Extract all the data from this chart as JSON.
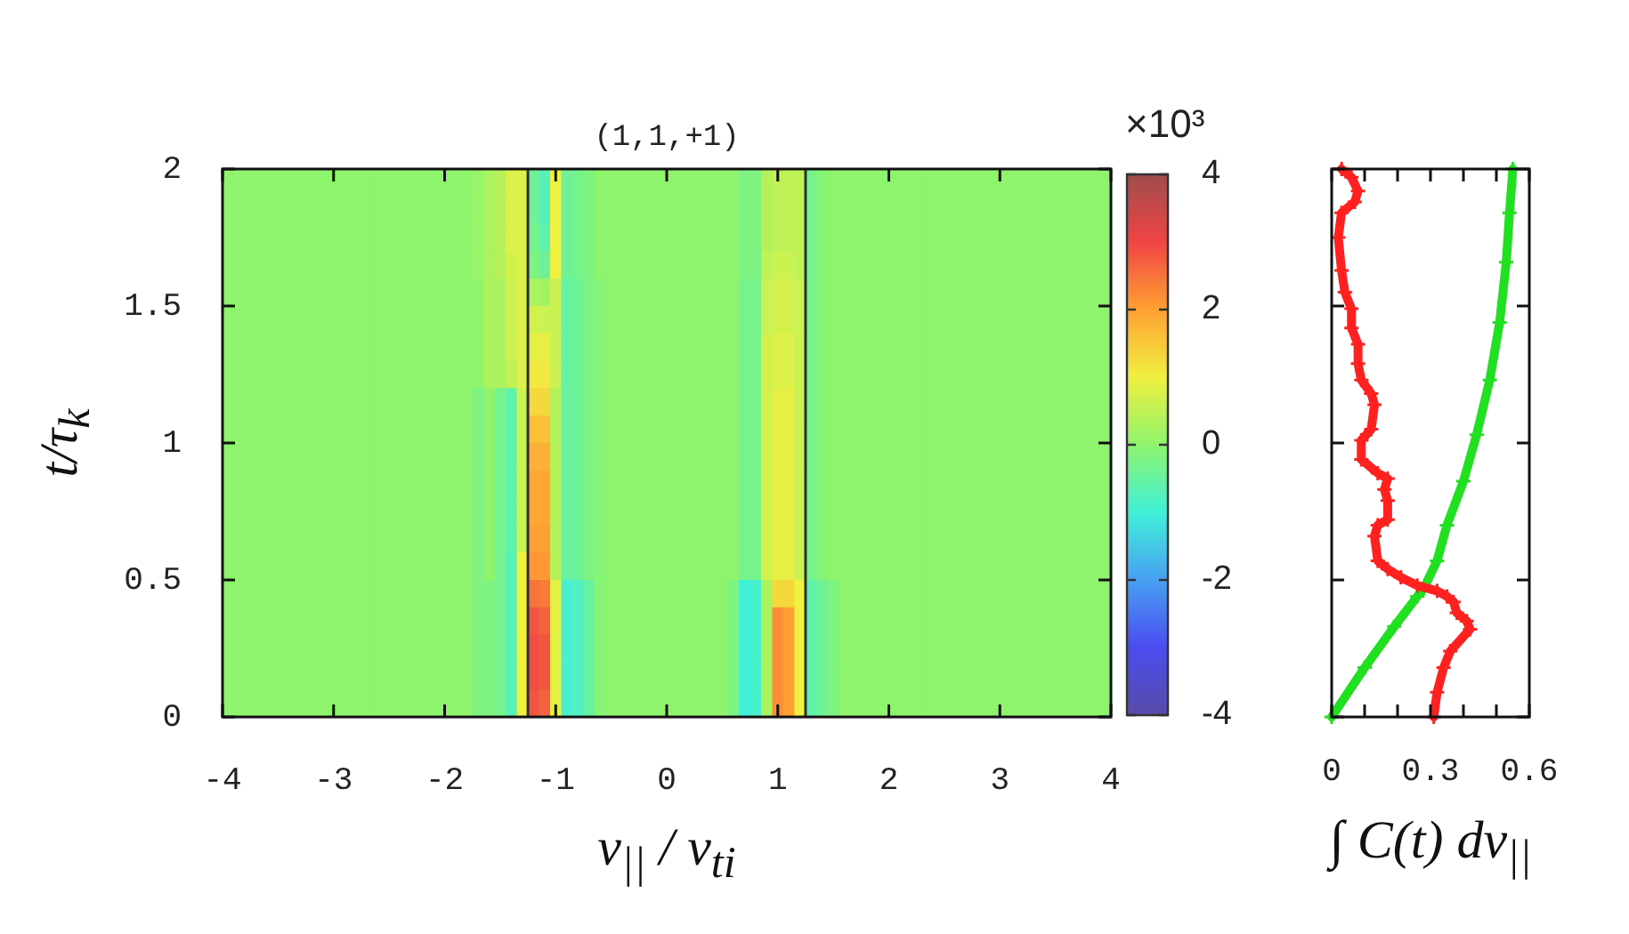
{
  "chart_data": [
    {
      "type": "heatmap",
      "title": "(1,1,+1)",
      "xlabel": "v$_{||}$ / v$_{ti}$",
      "ylabel": "t/τ$_{k}$",
      "clabel": "×10³",
      "x": [
        -4,
        -3.9,
        -3.8,
        -3.7,
        -3.6,
        -3.5,
        -3.4,
        -3.3,
        -3.2,
        -3.1,
        -3,
        -2.9,
        -2.8,
        -2.7,
        -2.6,
        -2.5,
        -2.4,
        -2.3,
        -2.2,
        -2.1,
        -2,
        -1.9,
        -1.8,
        -1.7,
        -1.6,
        -1.5,
        -1.4,
        -1.3,
        -1.2,
        -1.1,
        -1,
        -0.9,
        -0.8,
        -0.7,
        -0.6,
        -0.5,
        -0.4,
        -0.3,
        -0.2,
        -0.1,
        0,
        0.1,
        0.2,
        0.3,
        0.4,
        0.5,
        0.6,
        0.7,
        0.8,
        0.9,
        1,
        1.1,
        1.2,
        1.3,
        1.4,
        1.5,
        1.6,
        1.7,
        1.8,
        1.9,
        2,
        2.1,
        2.2,
        2.3,
        2.4,
        2.5,
        2.6,
        2.7,
        2.8,
        2.9,
        3,
        3.1,
        3.2,
        3.3,
        3.4,
        3.5,
        3.6,
        3.7,
        3.8,
        3.9,
        4
      ],
      "xlim": [
        -4,
        4
      ],
      "xticks": [
        -4,
        -3,
        -2,
        -1,
        0,
        1,
        2,
        3,
        4
      ],
      "y": [
        1.95,
        1.85,
        1.75,
        1.65,
        1.55,
        1.45,
        1.35,
        1.25,
        1.15,
        1.05,
        0.95,
        0.85,
        0.75,
        0.65,
        0.55,
        0.45,
        0.35,
        0.25,
        0.15,
        0.05
      ],
      "ylim": [
        0,
        2
      ],
      "yticks": [
        0,
        0.5,
        1,
        1.5,
        2
      ],
      "clim": [
        -4,
        4
      ],
      "cticks": [
        -4,
        -2,
        0,
        2,
        4
      ],
      "ref_lines": [
        {
          "axis": "x",
          "value": -1.25,
          "color": "#303030"
        },
        {
          "axis": "x",
          "value": 1.25,
          "color": "#303030"
        }
      ],
      "cells": [
        [
          0,
          0,
          0,
          0,
          0,
          0,
          0,
          0,
          0,
          0,
          0,
          0,
          0,
          0,
          0,
          0,
          0,
          0,
          0,
          0,
          0,
          0,
          0,
          0.1,
          0.3,
          0.4,
          0.8,
          0.8,
          -0.4,
          -0.7,
          1,
          -0.4,
          -0.3,
          -0.2,
          0,
          0,
          0,
          0,
          0,
          0,
          0,
          0,
          0,
          0,
          0,
          0,
          0,
          -0.2,
          -0.2,
          0.4,
          0.5,
          0.5,
          0.5,
          -0.3,
          -0.1,
          0,
          0,
          0,
          0,
          0,
          0,
          0,
          0,
          0,
          0,
          0,
          0,
          0,
          0,
          0,
          0,
          0,
          0,
          0,
          0,
          0,
          0,
          0,
          0,
          0,
          0
        ],
        [
          0,
          0,
          0,
          0,
          0,
          0,
          0,
          0,
          0,
          0,
          0,
          0,
          0,
          0,
          0,
          0,
          0,
          0,
          0,
          0,
          0,
          0,
          0,
          0.1,
          0.3,
          0.4,
          0.8,
          0.8,
          -0.4,
          -0.7,
          1,
          -0.4,
          -0.3,
          -0.2,
          0,
          0,
          0,
          0,
          0,
          0,
          0,
          0,
          0,
          0,
          0,
          0,
          0,
          -0.2,
          -0.2,
          0.4,
          0.5,
          0.5,
          0.5,
          -0.3,
          -0.1,
          0,
          0,
          0,
          0,
          0,
          0,
          0,
          0,
          0,
          0,
          0,
          0,
          0,
          0,
          0,
          0,
          0,
          0,
          0,
          0,
          0,
          0,
          0,
          0,
          0,
          0
        ],
        [
          0,
          0,
          0,
          0,
          0,
          0,
          0,
          0,
          0,
          0,
          0,
          0,
          0,
          0,
          0,
          0,
          0,
          0,
          0,
          0,
          0,
          0,
          0,
          0.1,
          0.3,
          0.4,
          0.8,
          0.8,
          -0.3,
          -0.6,
          1,
          -0.4,
          -0.3,
          -0.2,
          0,
          0,
          0,
          0,
          0,
          0,
          0,
          0,
          0,
          0,
          0,
          0,
          0,
          -0.2,
          -0.2,
          0.4,
          0.5,
          0.5,
          0.5,
          -0.3,
          -0.1,
          0,
          0,
          0,
          0,
          0,
          0,
          0,
          0,
          0,
          0,
          0,
          0,
          0,
          0,
          0,
          0,
          0,
          0,
          0,
          0,
          0,
          0,
          0,
          0,
          0,
          0
        ],
        [
          0,
          0,
          0,
          0,
          0,
          0,
          0,
          0,
          0,
          0,
          0,
          0,
          0,
          0,
          0,
          0,
          0,
          0,
          0,
          0,
          0,
          0,
          0,
          0.1,
          0.3,
          0.4,
          0.7,
          0.8,
          -0.2,
          -0.4,
          1,
          -0.4,
          -0.3,
          -0.2,
          0,
          0,
          0,
          0,
          0,
          0,
          0,
          0,
          0,
          0,
          0,
          0,
          0,
          -0.2,
          -0.2,
          0.5,
          0.6,
          0.6,
          0.5,
          -0.3,
          -0.1,
          0,
          0,
          0,
          0,
          0,
          0,
          0,
          0,
          0,
          0,
          0,
          0,
          0,
          0,
          0,
          0,
          0,
          0,
          0,
          0,
          0,
          0,
          0,
          0,
          0,
          0
        ],
        [
          0,
          0,
          0,
          0,
          0,
          0,
          0,
          0,
          0,
          0,
          0,
          0,
          0,
          0,
          0,
          0,
          0,
          0,
          0,
          0,
          0,
          0,
          0,
          0,
          0.3,
          0.3,
          0.6,
          0.8,
          0.3,
          0.2,
          0.6,
          -0.5,
          -0.4,
          -0.2,
          -0.1,
          0,
          0,
          0,
          0,
          0,
          0,
          0,
          0,
          0,
          0,
          0,
          0,
          -0.3,
          -0.3,
          0.6,
          0.7,
          0.7,
          0.6,
          -0.3,
          -0.1,
          0,
          0,
          0,
          0,
          0,
          0,
          0,
          0,
          0,
          0,
          0,
          0,
          0,
          0,
          0,
          0,
          0,
          0,
          0,
          0,
          0,
          0,
          0,
          0,
          0,
          0
        ],
        [
          0,
          0,
          0,
          0,
          0,
          0,
          0,
          0,
          0,
          0,
          0,
          0,
          0,
          0,
          0,
          0,
          0,
          0,
          0,
          0,
          0,
          0,
          0,
          0,
          0.3,
          0.3,
          0.6,
          0.8,
          0.7,
          0.6,
          0.6,
          -0.5,
          -0.4,
          -0.2,
          -0.1,
          0,
          0,
          0,
          0,
          0,
          0,
          0,
          0,
          0,
          0,
          0,
          0,
          -0.3,
          -0.3,
          0.6,
          0.7,
          0.7,
          0.6,
          -0.3,
          -0.1,
          0,
          0,
          0,
          0,
          0,
          0,
          0,
          0,
          0,
          0,
          0,
          0,
          0,
          0,
          0,
          0,
          0,
          0,
          0,
          0,
          0,
          0,
          0,
          0,
          0,
          0
        ],
        [
          0,
          0,
          0,
          0,
          0,
          0,
          0,
          0,
          0,
          0,
          0,
          0,
          0,
          0,
          0,
          0,
          0,
          0,
          0,
          0,
          0,
          0,
          0,
          0,
          0.3,
          0.3,
          0.6,
          0.8,
          0.9,
          0.9,
          0.6,
          -0.5,
          -0.4,
          -0.2,
          -0.1,
          0,
          0,
          0,
          0,
          0,
          0,
          0,
          0,
          0,
          0,
          0,
          0,
          -0.3,
          -0.3,
          0.7,
          0.8,
          0.8,
          0.6,
          -0.3,
          -0.1,
          0,
          0,
          0,
          0,
          0,
          0,
          0,
          0,
          0,
          0,
          0,
          0,
          0,
          0,
          0,
          0,
          0,
          0,
          0,
          0,
          0,
          0,
          0,
          0,
          0,
          0
        ],
        [
          0,
          0,
          0,
          0,
          0,
          0,
          0,
          0,
          0,
          0,
          0,
          0,
          0,
          0,
          0,
          0,
          0,
          0,
          0,
          0,
          0,
          0,
          0,
          0,
          0.3,
          0.3,
          0.5,
          0.8,
          1.1,
          1.1,
          0.6,
          -0.5,
          -0.4,
          -0.2,
          -0.1,
          0,
          0,
          0,
          0,
          0,
          0,
          0,
          0,
          0,
          0,
          0,
          0,
          -0.3,
          -0.3,
          0.7,
          0.8,
          0.8,
          0.6,
          -0.3,
          -0.1,
          0,
          0,
          0,
          0,
          0,
          0,
          0,
          0,
          0,
          0,
          0,
          0,
          0,
          0,
          0,
          0,
          0,
          0,
          0,
          0,
          0,
          0,
          0,
          0,
          0,
          0
        ],
        [
          0,
          0,
          0,
          0,
          0,
          0,
          0,
          0,
          0,
          0,
          0,
          0,
          0,
          0,
          0,
          0,
          0,
          0,
          0,
          0,
          0,
          0,
          0,
          -0.2,
          0,
          -0.3,
          -0.6,
          0.6,
          1.3,
          1.3,
          0.4,
          -0.5,
          -0.4,
          -0.2,
          -0.1,
          0,
          0,
          0,
          0,
          0,
          0,
          0,
          0,
          0,
          0,
          0,
          0,
          -0.3,
          -0.3,
          0.7,
          0.9,
          0.9,
          0.6,
          -0.3,
          -0.1,
          0,
          0,
          0,
          0,
          0,
          0,
          0,
          0,
          0,
          0,
          0,
          0,
          0,
          0,
          0,
          0,
          0,
          0,
          0,
          0,
          0,
          0,
          0,
          0,
          0,
          0
        ],
        [
          0,
          0,
          0,
          0,
          0,
          0,
          0,
          0,
          0,
          0,
          0,
          0,
          0,
          0,
          0,
          0,
          0,
          0,
          0,
          0,
          0,
          0,
          0,
          -0.2,
          0,
          -0.3,
          -0.6,
          0.6,
          1.6,
          1.6,
          0.4,
          -0.5,
          -0.4,
          -0.2,
          -0.1,
          0,
          0,
          0,
          0,
          0,
          0,
          0,
          0,
          0,
          0,
          0,
          0,
          -0.3,
          -0.3,
          0.7,
          0.9,
          0.9,
          0.6,
          -0.3,
          -0.1,
          0,
          0,
          0,
          0,
          0,
          0,
          0,
          0,
          0,
          0,
          0,
          0,
          0,
          0,
          0,
          0,
          0,
          0,
          0,
          0,
          0,
          0,
          0,
          0,
          0,
          0
        ],
        [
          0,
          0,
          0,
          0,
          0,
          0,
          0,
          0,
          0,
          0,
          0,
          0,
          0,
          0,
          0,
          0,
          0,
          0,
          0,
          0,
          0,
          0,
          0,
          -0.2,
          0,
          -0.3,
          -0.6,
          0.6,
          1.8,
          1.8,
          0.4,
          -0.5,
          -0.4,
          -0.2,
          -0.1,
          0,
          0,
          0,
          0,
          0,
          0,
          0,
          0,
          0,
          0,
          0,
          0,
          -0.3,
          -0.3,
          0.7,
          0.9,
          0.9,
          0.6,
          -0.3,
          -0.1,
          0,
          0,
          0,
          0,
          0,
          0,
          0,
          0,
          0,
          0,
          0,
          0,
          0,
          0,
          0,
          0,
          0,
          0,
          0,
          0,
          0,
          0,
          0,
          0,
          0,
          0
        ],
        [
          0,
          0,
          0,
          0,
          0,
          0,
          0,
          0,
          0,
          0,
          0,
          0,
          0,
          0,
          0,
          0,
          0,
          0,
          0,
          0,
          0,
          0,
          0,
          -0.2,
          0,
          -0.3,
          -0.6,
          0.6,
          1.9,
          1.9,
          0.4,
          -0.5,
          -0.4,
          -0.2,
          -0.1,
          0,
          0,
          0,
          0,
          0,
          0,
          0,
          0,
          0,
          0,
          0,
          0,
          -0.3,
          -0.3,
          0.7,
          0.9,
          0.9,
          0.6,
          -0.3,
          -0.1,
          0,
          0,
          0,
          0,
          0,
          0,
          0,
          0,
          0,
          0,
          0,
          0,
          0,
          0,
          0,
          0,
          0,
          0,
          0,
          0,
          0,
          0,
          0,
          0,
          0,
          0
        ],
        [
          0,
          0,
          0,
          0,
          0,
          0,
          0,
          0,
          0,
          0,
          0,
          0,
          0,
          0,
          0,
          0,
          0,
          0,
          0,
          0,
          0,
          0,
          0,
          -0.2,
          0,
          -0.3,
          -0.6,
          0.6,
          1.9,
          1.9,
          0.4,
          -0.5,
          -0.4,
          -0.2,
          -0.1,
          0,
          0,
          0,
          0,
          0,
          0,
          0,
          0,
          0,
          0,
          0,
          0,
          -0.3,
          -0.3,
          0.7,
          0.9,
          0.9,
          0.6,
          -0.3,
          -0.1,
          0,
          0,
          0,
          0,
          0,
          0,
          0,
          0,
          0,
          0,
          0,
          0,
          0,
          0,
          0,
          0,
          0,
          0,
          0,
          0,
          0,
          0,
          0,
          0,
          0,
          0
        ],
        [
          0,
          0,
          0,
          0,
          0,
          0,
          0,
          0,
          0,
          0,
          0,
          0,
          0,
          0,
          0,
          0,
          0,
          0,
          0,
          0,
          0,
          0,
          0,
          -0.2,
          0,
          -0.3,
          -0.6,
          0.6,
          2,
          2,
          0.4,
          -0.5,
          -0.4,
          -0.2,
          -0.1,
          0,
          0,
          0,
          0,
          0,
          0,
          0,
          0,
          0,
          0,
          0,
          0,
          -0.3,
          -0.3,
          0.7,
          0.9,
          0.9,
          0.6,
          -0.3,
          -0.1,
          0,
          0,
          0,
          0,
          0,
          0,
          0,
          0,
          0,
          0,
          0,
          0,
          0,
          0,
          0,
          0,
          0,
          0,
          0,
          0,
          0,
          0,
          0,
          0,
          0,
          0
        ],
        [
          0,
          0,
          0,
          0,
          0,
          0,
          0,
          0,
          0,
          0,
          0,
          0,
          0,
          0,
          0,
          0,
          0,
          0,
          0,
          0,
          0,
          0,
          0,
          -0.2,
          0,
          -0.3,
          -0.7,
          1,
          2.1,
          2.1,
          0.4,
          -0.5,
          -0.4,
          -0.2,
          -0.1,
          0,
          0,
          0,
          0,
          0,
          0,
          0,
          0,
          0,
          0,
          0,
          0,
          -0.3,
          -0.3,
          0.7,
          0.9,
          0.9,
          0.6,
          -0.3,
          -0.1,
          0,
          0,
          0,
          0,
          0,
          0,
          0,
          0,
          0,
          0,
          0,
          0,
          0,
          0,
          0,
          0,
          0,
          0,
          0,
          0,
          0,
          0,
          0,
          0,
          0,
          0
        ],
        [
          0,
          0,
          0,
          0,
          0,
          0,
          0,
          0,
          0,
          0,
          0,
          0,
          0,
          0,
          0,
          0,
          0,
          0,
          0,
          0,
          0,
          0,
          0,
          -0.2,
          -0.2,
          -0.3,
          -0.7,
          1,
          2.5,
          2.4,
          0.9,
          -0.9,
          -0.8,
          -0.5,
          -0.1,
          0,
          0,
          0,
          0,
          0,
          0,
          0,
          0,
          0,
          0,
          0,
          -0.2,
          -1,
          -0.9,
          0.3,
          1.3,
          1.3,
          1,
          -0.6,
          -0.4,
          -0.2,
          0,
          0,
          0,
          0,
          0,
          0,
          0,
          0,
          0,
          0,
          0,
          0,
          0,
          0,
          0,
          0,
          0,
          0,
          0,
          0,
          0,
          0,
          0,
          0,
          0
        ],
        [
          0,
          0,
          0,
          0,
          0,
          0,
          0,
          0,
          0,
          0,
          0,
          0,
          0,
          0,
          0,
          0,
          0,
          0,
          0,
          0,
          0,
          0,
          0,
          -0.2,
          -0.2,
          -0.3,
          -0.7,
          1,
          2.8,
          2.7,
          0.9,
          -0.9,
          -0.8,
          -0.5,
          -0.1,
          0,
          0,
          0,
          0,
          0,
          0,
          0,
          0,
          0,
          0,
          0,
          -0.2,
          -1,
          -0.9,
          0.3,
          2.2,
          2,
          1,
          -0.6,
          -0.4,
          -0.2,
          0,
          0,
          0,
          0,
          0,
          0,
          0,
          0,
          0,
          0,
          0,
          0,
          0,
          0,
          0,
          0,
          0,
          0,
          0,
          0,
          0,
          0,
          0,
          0,
          0
        ],
        [
          0,
          0,
          0,
          0,
          0,
          0,
          0,
          0,
          0,
          0,
          0,
          0,
          0,
          0,
          0,
          0,
          0,
          0,
          0,
          0,
          0,
          0,
          0,
          -0.2,
          -0.2,
          -0.3,
          -0.7,
          1,
          2.9,
          2.8,
          0.9,
          -0.9,
          -0.8,
          -0.5,
          -0.1,
          0,
          0,
          0,
          0,
          0,
          0,
          0,
          0,
          0,
          0,
          0,
          -0.2,
          -1,
          -0.9,
          0.3,
          2.2,
          2,
          1,
          -0.6,
          -0.4,
          -0.2,
          0,
          0,
          0,
          0,
          0,
          0,
          0,
          0,
          0,
          0,
          0,
          0,
          0,
          0,
          0,
          0,
          0,
          0,
          0,
          0,
          0,
          0,
          0,
          0,
          0
        ],
        [
          0,
          0,
          0,
          0,
          0,
          0,
          0,
          0,
          0,
          0,
          0,
          0,
          0,
          0,
          0,
          0,
          0,
          0,
          0,
          0,
          0,
          0,
          0,
          -0.2,
          -0.2,
          -0.3,
          -0.7,
          1,
          2.9,
          2.8,
          0.9,
          -0.9,
          -0.8,
          -0.5,
          -0.1,
          0,
          0,
          0,
          0,
          0,
          0,
          0,
          0,
          0,
          0,
          0,
          -0.2,
          -1,
          -0.9,
          0.3,
          2.2,
          2,
          1,
          -0.6,
          -0.4,
          -0.2,
          0,
          0,
          0,
          0,
          0,
          0,
          0,
          0,
          0,
          0,
          0,
          0,
          0,
          0,
          0,
          0,
          0,
          0,
          0,
          0,
          0,
          0,
          0,
          0,
          0
        ],
        [
          0,
          0,
          0,
          0,
          0,
          0,
          0,
          0,
          0,
          0,
          0,
          0,
          0,
          0,
          0,
          0,
          0,
          0,
          0,
          0,
          0,
          0,
          0,
          -0.2,
          -0.2,
          -0.3,
          -0.7,
          1,
          2.8,
          2.7,
          0.9,
          -0.9,
          -0.8,
          -0.5,
          -0.1,
          0,
          0,
          0,
          0,
          0,
          0,
          0,
          0,
          0,
          0,
          0,
          -0.2,
          -1,
          -0.9,
          0.3,
          2.2,
          2,
          1,
          -0.6,
          -0.4,
          -0.2,
          0,
          0,
          0,
          0,
          0,
          0,
          0,
          0,
          0,
          0,
          0,
          0,
          0,
          0,
          0,
          0,
          0,
          0,
          0,
          0,
          0,
          0,
          0,
          0,
          0
        ]
      ]
    },
    {
      "type": "line",
      "xlabel": "∫ C(t) dv$_{||}$",
      "xlim": [
        0,
        0.6
      ],
      "xticks": [
        0,
        {
          "value": 0.1,
          "label": null
        },
        {
          "value": 0.2,
          "label": null
        },
        0.3,
        {
          "value": 0.4,
          "label": null
        },
        {
          "value": 0.5,
          "label": null
        },
        0.6
      ],
      "ylim": [
        0,
        2
      ],
      "yticks": [
        0,
        0.5,
        1,
        1.5,
        2
      ],
      "tick_labels": "x",
      "marker": "cross",
      "series": [
        {
          "color": "#ff2020",
          "x": [
            0.31,
            0.32,
            0.34,
            0.36,
            0.42,
            0.41,
            0.38,
            0.37,
            0.35,
            0.32,
            0.26,
            0.21,
            0.17,
            0.14,
            0.13,
            0.14,
            0.17,
            0.17,
            0.16,
            0.17,
            0.14,
            0.09,
            0.09,
            0.12,
            0.13,
            0.12,
            0.09,
            0.08,
            0.08,
            0.06,
            0.06,
            0.04,
            0.03,
            0.02,
            0.03,
            0.07,
            0.08,
            0.06,
            0.03
          ],
          "values": [
            0,
            0.09,
            0.18,
            0.24,
            0.32,
            0.35,
            0.38,
            0.42,
            0.44,
            0.46,
            0.48,
            0.51,
            0.54,
            0.57,
            0.66,
            0.7,
            0.72,
            0.79,
            0.83,
            0.87,
            0.89,
            0.94,
            1.01,
            1.05,
            1.14,
            1.18,
            1.23,
            1.29,
            1.36,
            1.42,
            1.49,
            1.55,
            1.63,
            1.75,
            1.84,
            1.88,
            1.92,
            1.97,
            2
          ]
        },
        {
          "color": "#20e020",
          "x": [
            0,
            0.1,
            0.19,
            0.26,
            0.28,
            0.32,
            0.35,
            0.4,
            0.44,
            0.48,
            0.51,
            0.53,
            0.54,
            0.55
          ],
          "values": [
            0,
            0.18,
            0.33,
            0.44,
            0.47,
            0.57,
            0.7,
            0.86,
            1.03,
            1.23,
            1.44,
            1.66,
            1.84,
            2
          ]
        }
      ]
    }
  ]
}
